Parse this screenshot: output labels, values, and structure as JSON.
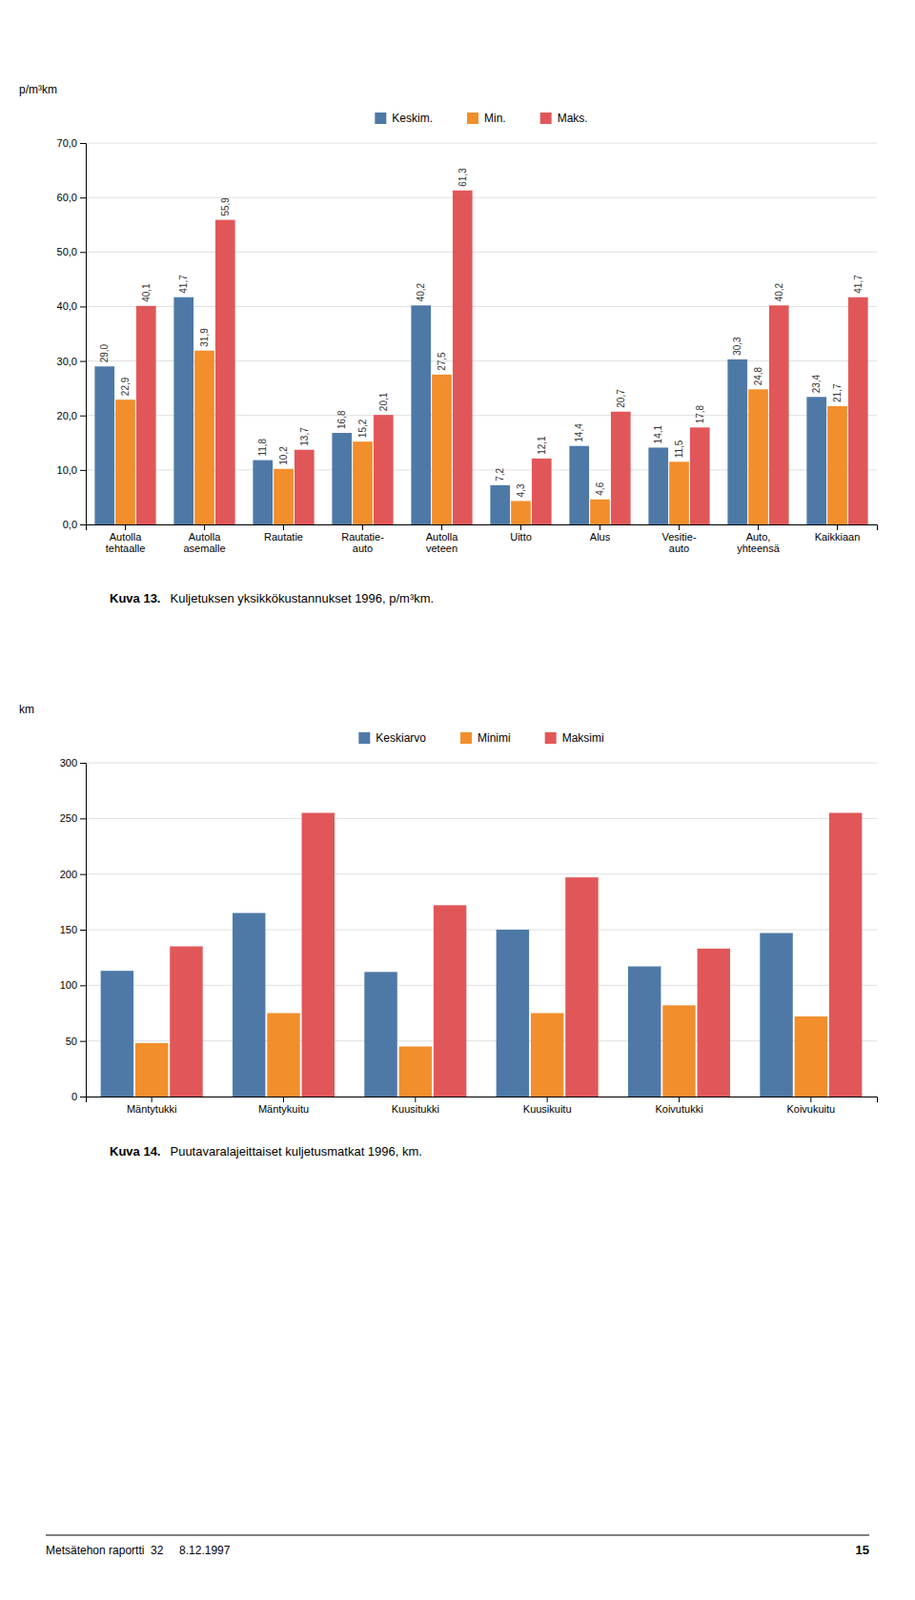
{
  "chart_data": [
    {
      "type": "bar",
      "title": "Kuva 13.",
      "subtitle": "Kuljetuksen yksikkökustannukset 1996, p/m³km.",
      "ylabel": "p/m³km",
      "categories": [
        "Autolla\ntehtaalle",
        "Autolla\nasemalle",
        "Rautatie",
        "Rautatie-\nauto",
        "Autolla\nveteen",
        "Uitto",
        "Alus",
        "Vesitie-\nauto",
        "Auto,\nyhteensä",
        "Kaikkiaan"
      ],
      "series": [
        {
          "name": "Keskim.",
          "values": [
            29.0,
            41.7,
            11.8,
            16.8,
            40.2,
            7.2,
            14.4,
            14.1,
            30.3,
            23.4
          ],
          "value_labels": [
            "29,0",
            "41,7",
            "11,8",
            "16,8",
            "40,2",
            "7,2",
            "14,4",
            "14,1",
            "30,3",
            "23,4"
          ]
        },
        {
          "name": "Min.",
          "values": [
            22.9,
            31.9,
            10.2,
            15.2,
            27.5,
            4.3,
            4.6,
            11.5,
            24.8,
            21.7
          ],
          "value_labels": [
            "22,9",
            "31,9",
            "10,2",
            "15,2",
            "27,5",
            "4,3",
            "4,6",
            "11,5",
            "24,8",
            "21,7"
          ]
        },
        {
          "name": "Maks.",
          "values": [
            40.1,
            55.9,
            13.7,
            20.1,
            61.3,
            12.1,
            20.7,
            17.8,
            40.2,
            41.7
          ],
          "value_labels": [
            "40,1",
            "55,9",
            "13,7",
            "20,1",
            "61,3",
            "12,1",
            "20,7",
            "17,8",
            "40,2",
            "41,7"
          ]
        }
      ],
      "ylim": [
        0,
        70
      ],
      "yticks": [
        {
          "value": 0,
          "label": "0,0"
        },
        {
          "value": 10,
          "label": "10,0"
        },
        {
          "value": 20,
          "label": "20,0"
        },
        {
          "value": 30,
          "label": "30,0"
        },
        {
          "value": 40,
          "label": "40,0"
        },
        {
          "value": 50,
          "label": "50,0"
        },
        {
          "value": 60,
          "label": "60,0"
        },
        {
          "value": 70,
          "label": "70,0"
        }
      ],
      "grid": true,
      "legend": "top",
      "data_labels": true
    },
    {
      "type": "bar",
      "title": "Kuva 14.",
      "subtitle": "Puutavaralajeittaiset kuljetusmatkat 1996, km.",
      "ylabel": "km",
      "categories": [
        "Mäntytukki",
        "Mäntykuitu",
        "Kuusitukki",
        "Kuusikuitu",
        "Koivutukki",
        "Koivukuitu"
      ],
      "series": [
        {
          "name": "Keskiarvo",
          "values": [
            113,
            165,
            112,
            150,
            117,
            147
          ]
        },
        {
          "name": "Minimi",
          "values": [
            48,
            75,
            45,
            75,
            82,
            72
          ]
        },
        {
          "name": "Maksimi",
          "values": [
            135,
            255,
            172,
            197,
            133,
            255
          ]
        }
      ],
      "ylim": [
        0,
        300
      ],
      "yticks": [
        0,
        50,
        100,
        150,
        200,
        250,
        300
      ],
      "grid": true,
      "legend": "top",
      "annotations": [
        "Metsätehon raportti  32     8.12.1997",
        "15"
      ]
    }
  ]
}
